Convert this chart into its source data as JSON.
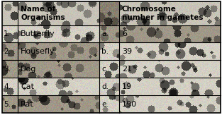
{
  "col1_numbers": [
    "",
    "1.",
    "2.",
    "3.",
    "4.",
    "5."
  ],
  "col2_header": "Name of\nOrganisms",
  "col2_items": [
    "Butterfly",
    "Housefly",
    "Dog",
    "Cat",
    "Rat"
  ],
  "col3_items": [
    "a.",
    "b.",
    "c.",
    "d.",
    "e."
  ],
  "col4_header": "Chromosome\nnumber in gametes",
  "col4_items": [
    "6",
    "39",
    "21",
    "19",
    "190"
  ],
  "bg_light": "#c8c4b8",
  "bg_dark": "#888070",
  "row_light": "#d4d0c4",
  "row_dark": "#a09888",
  "border_color": "#111111",
  "text_color": "#000000",
  "figsize": [
    3.13,
    1.63
  ],
  "dpi": 100,
  "noise_seed": 42,
  "noise_scale": 0.18
}
